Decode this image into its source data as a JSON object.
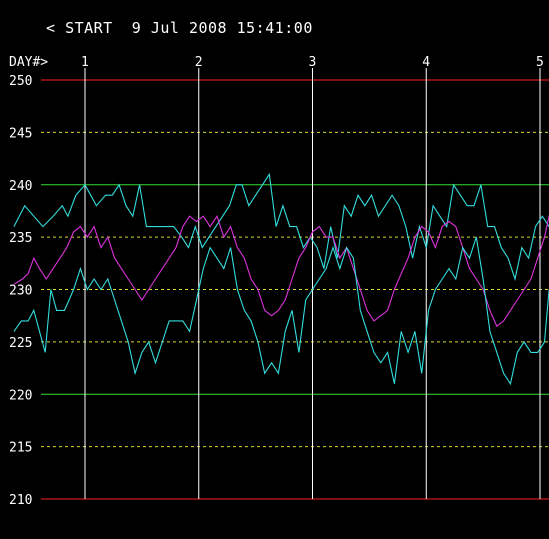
{
  "header": {
    "nav_back_label": "<",
    "start_label": "START",
    "start_datetime": "9 Jul 2008 15:41:00"
  },
  "chart_data": {
    "type": "line",
    "title": "",
    "x_axis_label": "DAY#>",
    "x_ticks": [
      1,
      2,
      3,
      4,
      5
    ],
    "y_ticks": [
      250,
      245,
      240,
      235,
      230,
      225,
      220,
      215,
      210
    ],
    "ylim": [
      210,
      250
    ],
    "xlim": [
      0.375,
      5.12
    ],
    "limit_lines": {
      "values": [
        210,
        250
      ],
      "color": "#ff2020"
    },
    "major_grid": {
      "values": [
        220,
        240
      ],
      "color": "#33dd33"
    },
    "minor_grid": {
      "values": [
        215,
        225,
        230,
        235,
        245
      ],
      "color": "#d8d830",
      "dash": true
    },
    "day_line_color": "#ffffff",
    "text_color": "#ffffff",
    "series": [
      {
        "name": "",
        "color": "#33dddd",
        "x": [
          0.375,
          0.47,
          0.55,
          0.63,
          0.72,
          0.8,
          0.85,
          0.92,
          1.0,
          1.05,
          1.1,
          1.18,
          1.24,
          1.3,
          1.36,
          1.42,
          1.48,
          1.54,
          1.6,
          1.66,
          1.72,
          1.78,
          1.85,
          1.91,
          1.97,
          2.03,
          2.09,
          2.15,
          2.21,
          2.27,
          2.33,
          2.38,
          2.44,
          2.5,
          2.56,
          2.62,
          2.68,
          2.74,
          2.8,
          2.86,
          2.92,
          2.98,
          3.04,
          3.1,
          3.16,
          3.22,
          3.28,
          3.34,
          3.4,
          3.46,
          3.52,
          3.58,
          3.64,
          3.7,
          3.76,
          3.82,
          3.88,
          3.94,
          4.0,
          4.06,
          4.12,
          4.18,
          4.24,
          4.3,
          4.36,
          4.42,
          4.48,
          4.54,
          4.6,
          4.66,
          4.72,
          4.78,
          4.84,
          4.9,
          4.96,
          5.02,
          5.08,
          5.12
        ],
        "y": [
          236,
          238,
          237,
          236,
          237,
          238,
          237,
          239,
          240,
          239,
          238,
          239,
          239,
          240,
          238,
          237,
          240,
          236,
          236,
          236,
          236,
          236,
          235,
          234,
          236,
          234,
          235,
          236,
          237,
          238,
          240,
          240,
          238,
          239,
          240,
          241,
          236,
          238,
          236,
          236,
          234,
          235,
          234,
          232,
          236,
          233,
          238,
          237,
          239,
          238,
          239,
          237,
          238,
          239,
          238,
          236,
          233,
          236,
          234,
          238,
          237,
          236,
          240,
          239,
          238,
          238,
          240,
          236,
          236,
          234,
          233,
          231,
          234,
          233,
          236,
          237,
          236,
          238
        ]
      },
      {
        "name": "",
        "color": "#dd33dd",
        "x": [
          0.375,
          0.45,
          0.5,
          0.55,
          0.6,
          0.66,
          0.72,
          0.78,
          0.84,
          0.9,
          0.96,
          1.02,
          1.08,
          1.14,
          1.2,
          1.26,
          1.32,
          1.38,
          1.44,
          1.5,
          1.56,
          1.62,
          1.68,
          1.74,
          1.8,
          1.86,
          1.92,
          1.98,
          2.04,
          2.1,
          2.16,
          2.22,
          2.28,
          2.34,
          2.4,
          2.46,
          2.52,
          2.58,
          2.64,
          2.7,
          2.76,
          2.82,
          2.88,
          2.94,
          3.0,
          3.06,
          3.12,
          3.18,
          3.24,
          3.3,
          3.36,
          3.42,
          3.48,
          3.54,
          3.6,
          3.66,
          3.72,
          3.78,
          3.84,
          3.9,
          3.96,
          4.02,
          4.08,
          4.14,
          4.2,
          4.26,
          4.32,
          4.38,
          4.44,
          4.5,
          4.56,
          4.62,
          4.68,
          4.74,
          4.8,
          4.86,
          4.92,
          4.98,
          5.04,
          5.08,
          5.12
        ],
        "y": [
          230.5,
          231,
          231.5,
          233,
          232,
          231,
          232,
          233,
          234,
          235.5,
          236,
          235,
          236,
          234,
          235,
          233,
          232,
          231,
          230,
          229,
          230,
          231,
          232,
          233,
          234,
          236,
          237,
          236.5,
          237,
          236,
          237,
          235,
          236,
          234,
          233,
          231,
          230,
          228,
          227.5,
          228,
          229,
          231,
          233,
          234,
          235.5,
          236,
          235,
          235,
          233,
          234,
          232,
          230,
          228,
          227,
          227.5,
          228,
          230,
          231.5,
          233,
          235,
          236,
          235.5,
          234,
          236,
          236.5,
          236,
          234,
          232,
          231,
          230,
          228,
          226.5,
          227,
          228,
          229,
          230,
          231,
          233,
          235,
          237,
          236
        ]
      },
      {
        "name": "",
        "color": "#33dddd",
        "x": [
          0.375,
          0.44,
          0.5,
          0.55,
          0.6,
          0.65,
          0.7,
          0.75,
          0.82,
          0.9,
          0.96,
          1.02,
          1.08,
          1.14,
          1.2,
          1.26,
          1.32,
          1.38,
          1.44,
          1.5,
          1.56,
          1.62,
          1.68,
          1.74,
          1.8,
          1.86,
          1.92,
          1.98,
          2.04,
          2.1,
          2.16,
          2.22,
          2.28,
          2.34,
          2.4,
          2.46,
          2.52,
          2.58,
          2.64,
          2.7,
          2.76,
          2.82,
          2.88,
          2.94,
          3.0,
          3.06,
          3.12,
          3.18,
          3.24,
          3.3,
          3.36,
          3.42,
          3.48,
          3.54,
          3.6,
          3.66,
          3.72,
          3.78,
          3.84,
          3.9,
          3.96,
          4.02,
          4.08,
          4.14,
          4.2,
          4.26,
          4.32,
          4.38,
          4.44,
          4.5,
          4.56,
          4.62,
          4.68,
          4.74,
          4.8,
          4.86,
          4.92,
          4.98,
          5.04,
          5.08,
          5.12
        ],
        "y": [
          226,
          227,
          227,
          228,
          226,
          224,
          230,
          228,
          228,
          230,
          232,
          230,
          231,
          230,
          231,
          229,
          227,
          225,
          222,
          224,
          225,
          223,
          225,
          227,
          227,
          227,
          226,
          229,
          232,
          234,
          233,
          232,
          234,
          230,
          228,
          227,
          225,
          222,
          223,
          222,
          226,
          228,
          224,
          229,
          230,
          231,
          232,
          234,
          232,
          234,
          233,
          228,
          226,
          224,
          223,
          224,
          221,
          226,
          224,
          226,
          222,
          228,
          230,
          231,
          232,
          231,
          234,
          233,
          235,
          231,
          226,
          224,
          222,
          221,
          224,
          225,
          224,
          224,
          225,
          230,
          229
        ]
      }
    ]
  }
}
